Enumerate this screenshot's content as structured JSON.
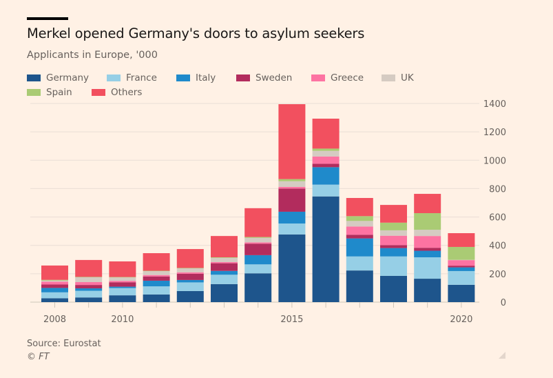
{
  "header": {
    "title": "Merkel opened Germany's doors to asylum seekers",
    "subtitle": "Applicants in Europe, '000"
  },
  "footer": {
    "source": "Source: Eurostat",
    "copyright": "© FT"
  },
  "legend": [
    {
      "label": "Germany",
      "color": "#1E558C"
    },
    {
      "label": "France",
      "color": "#96CFE6"
    },
    {
      "label": "Italy",
      "color": "#1F8ACB"
    },
    {
      "label": "Sweden",
      "color": "#B22C5D"
    },
    {
      "label": "Greece",
      "color": "#FD73A2"
    },
    {
      "label": "UK",
      "color": "#D5CBC2"
    },
    {
      "label": "Spain",
      "color": "#AACB74"
    },
    {
      "label": "Others",
      "color": "#F2505F"
    }
  ],
  "chart_data": {
    "type": "bar",
    "stacked": true,
    "title": "Merkel opened Germany's doors to asylum seekers",
    "subtitle": "Applicants in Europe, '000",
    "xlabel": "",
    "ylabel": "",
    "ylim": [
      0,
      1400
    ],
    "yticks": [
      0,
      200,
      400,
      600,
      800,
      1000,
      1200,
      1400
    ],
    "y_axis_position": "right",
    "grid": true,
    "legend_position": "top",
    "categories": [
      "2008",
      "2009",
      "2010",
      "2011",
      "2012",
      "2013",
      "2014",
      "2015",
      "2016",
      "2017",
      "2018",
      "2019",
      "2020"
    ],
    "xtick_labels": {
      "2008": "2008",
      "2010": "2010",
      "2015": "2015",
      "2020": "2020"
    },
    "series": [
      {
        "name": "Germany",
        "color": "#1E558C",
        "values": [
          27,
          33,
          48,
          54,
          78,
          127,
          203,
          477,
          745,
          223,
          185,
          165,
          122
        ]
      },
      {
        "name": "France",
        "color": "#96CFE6",
        "values": [
          42,
          47,
          51,
          57,
          61,
          66,
          63,
          77,
          83,
          99,
          137,
          151,
          97
        ]
      },
      {
        "name": "Italy",
        "color": "#1F8ACB",
        "values": [
          31,
          17,
          10,
          40,
          17,
          27,
          65,
          83,
          123,
          127,
          59,
          46,
          26
        ]
      },
      {
        "name": "Sweden",
        "color": "#B22C5D",
        "values": [
          24,
          24,
          31,
          30,
          44,
          54,
          81,
          163,
          24,
          26,
          21,
          21,
          12
        ]
      },
      {
        "name": "Greece",
        "color": "#FD73A2",
        "values": [
          20,
          20,
          10,
          10,
          10,
          8,
          9,
          12,
          51,
          58,
          66,
          83,
          39
        ]
      },
      {
        "name": "UK",
        "color": "#D5CBC2",
        "values": [
          8,
          34,
          24,
          27,
          28,
          30,
          32,
          40,
          40,
          39,
          38,
          44,
          2
        ]
      },
      {
        "name": "Spain",
        "color": "#AACB74",
        "values": [
          5,
          3,
          3,
          3,
          3,
          4,
          6,
          15,
          16,
          34,
          54,
          117,
          91
        ]
      },
      {
        "name": "Others",
        "color": "#F2505F",
        "values": [
          101,
          119,
          110,
          124,
          133,
          150,
          203,
          528,
          211,
          128,
          125,
          136,
          97
        ]
      }
    ]
  }
}
